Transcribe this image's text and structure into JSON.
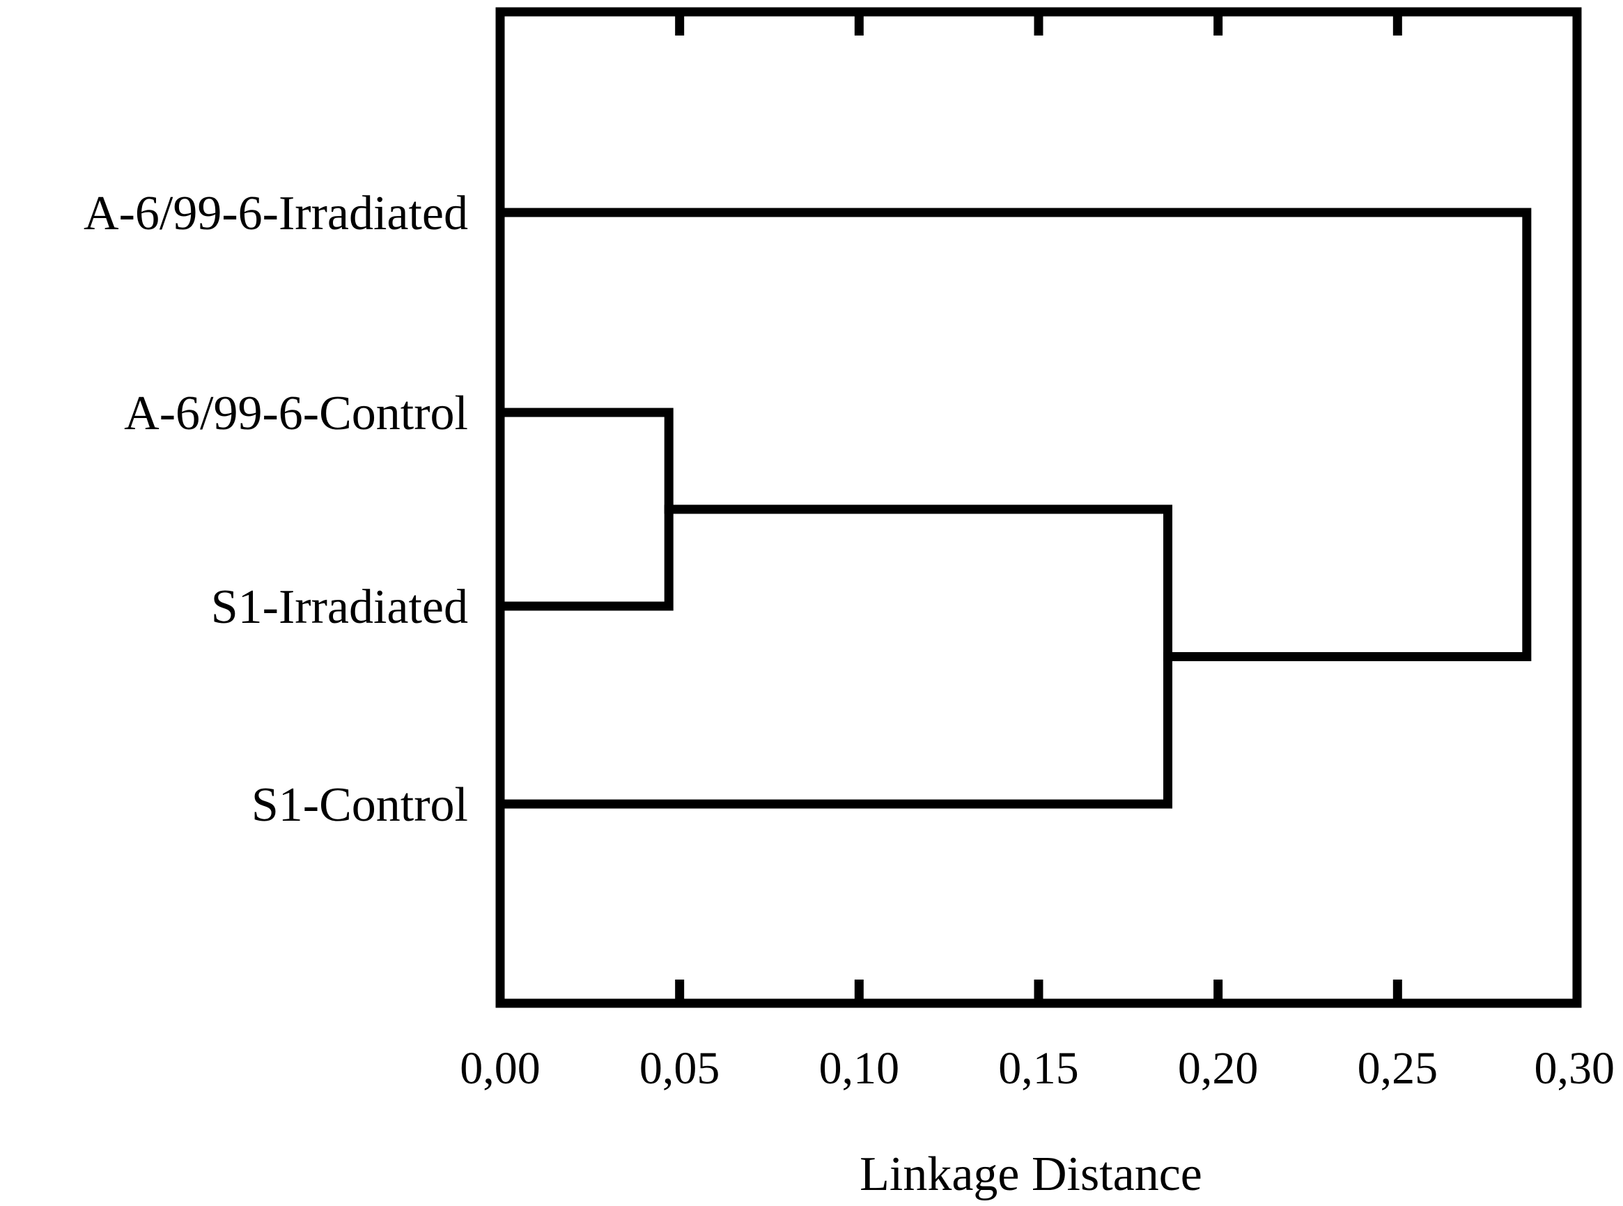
{
  "chart_data": {
    "type": "dendrogram",
    "title": "",
    "xlabel": "Linkage Distance",
    "ylabel": "",
    "xlim": [
      0,
      0.3
    ],
    "x_ticks": [
      0.0,
      0.05,
      0.1,
      0.15,
      0.2,
      0.25,
      0.3
    ],
    "x_tick_labels": [
      "0,00",
      "0,05",
      "0,10",
      "0,15",
      "0,20",
      "0,25",
      "0,30"
    ],
    "leaves": [
      "A-6/99-6-Irradiated",
      "A-6/99-6-Control",
      "S1-Irradiated",
      "S1-Control"
    ],
    "merges": [
      {
        "left": "A-6/99-6-Control",
        "right": "S1-Irradiated",
        "distance": 0.047
      },
      {
        "left": "cluster-1",
        "right": "S1-Control",
        "distance": 0.186
      },
      {
        "left": "A-6/99-6-Irradiated",
        "right": "cluster-2",
        "distance": 0.286
      }
    ],
    "grid": false,
    "legend": "none",
    "line_color": "#000000",
    "background_color": "#ffffff"
  }
}
